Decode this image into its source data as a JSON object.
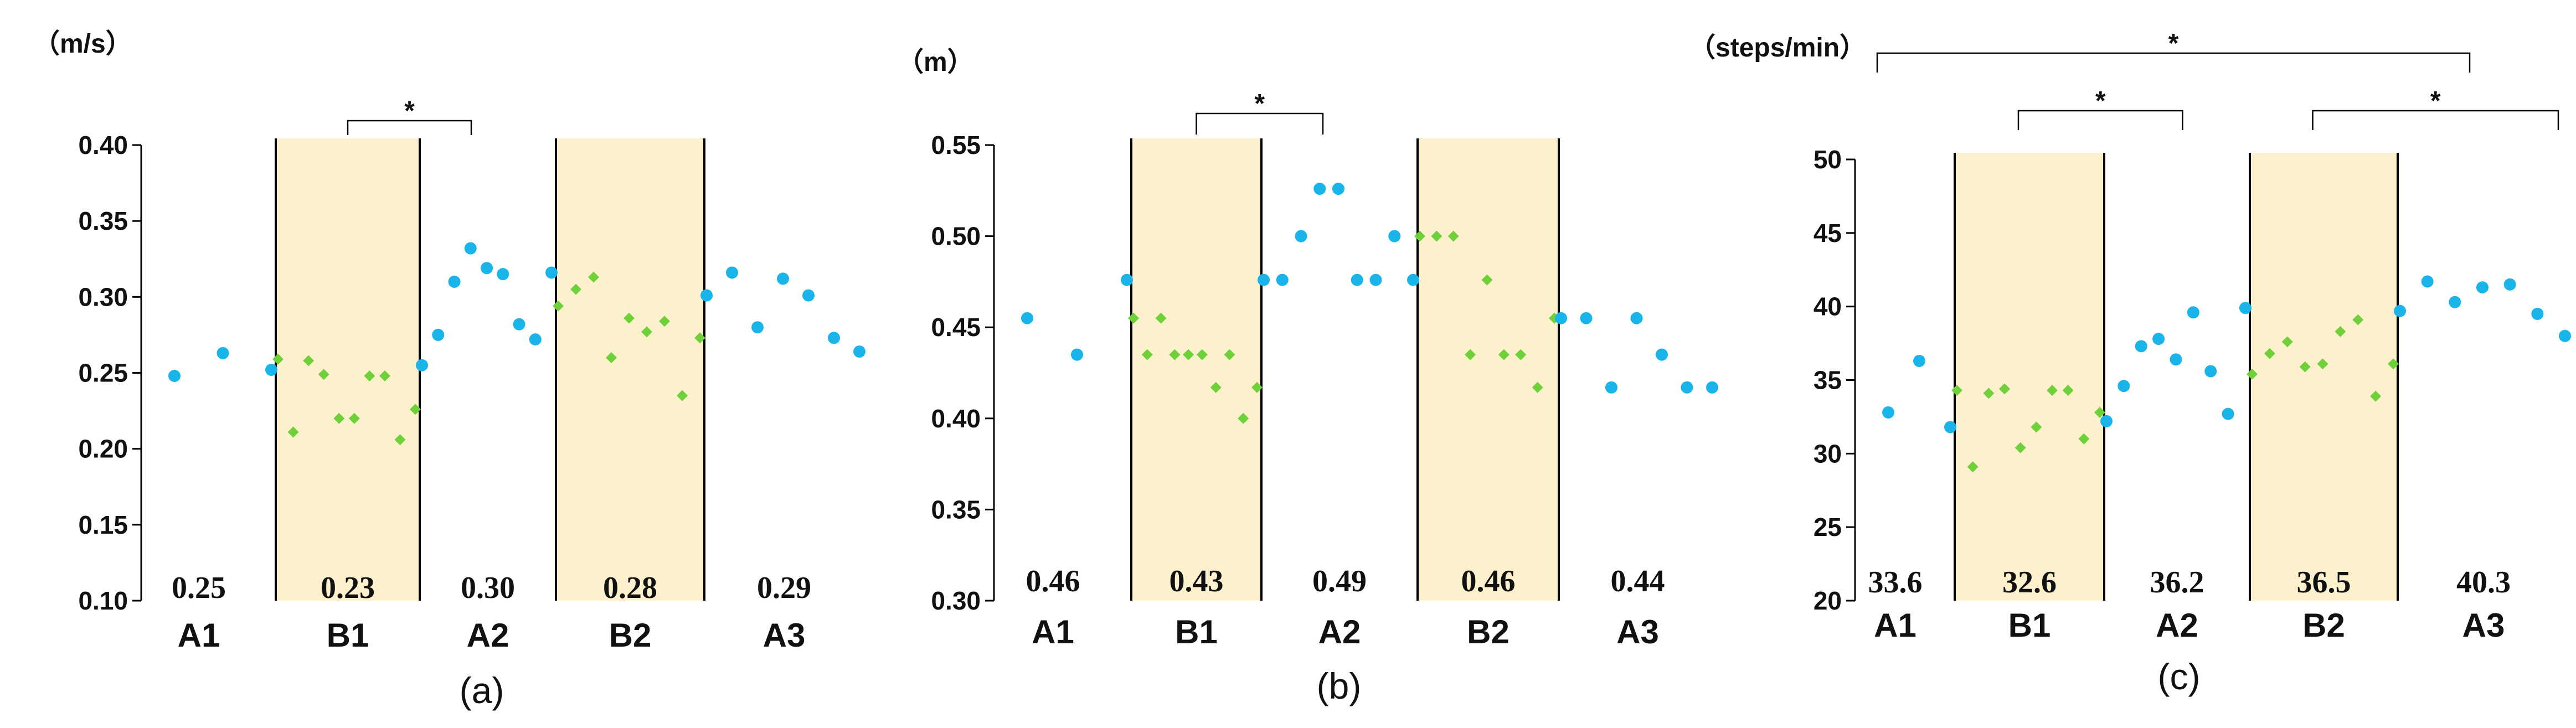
{
  "colors": {
    "phase_b_fill": "#fdf1cd",
    "phase_a_points": "#19b4ea",
    "phase_b_points": "#6fd13a",
    "axis": "#000000"
  },
  "chart_data": [
    {
      "type": "scatter",
      "subplot_label": "(a)",
      "unit": "（m/s）",
      "ylim": [
        0.1,
        0.4
      ],
      "yticks": [
        "0.10",
        "0.15",
        "0.20",
        "0.25",
        "0.30",
        "0.35",
        "0.40"
      ],
      "phases": [
        {
          "label": "A1",
          "mean": "0.25",
          "shaded": false
        },
        {
          "label": "B1",
          "mean": "0.23",
          "shaded": true
        },
        {
          "label": "A2",
          "mean": "0.30",
          "shaded": false
        },
        {
          "label": "B2",
          "mean": "0.28",
          "shaded": true
        },
        {
          "label": "A3",
          "mean": "0.29",
          "shaded": false
        }
      ],
      "significance": [
        {
          "from": "B1",
          "to": "A2",
          "label": "*"
        }
      ],
      "series": [
        {
          "phase": "A1",
          "values": [
            0.248,
            0.263,
            0.252
          ]
        },
        {
          "phase": "B1",
          "values": [
            0.259,
            0.211,
            0.258,
            0.249,
            0.22,
            0.22,
            0.248,
            0.248,
            0.206,
            0.226
          ]
        },
        {
          "phase": "A2",
          "values": [
            0.255,
            0.275,
            0.31,
            0.332,
            0.319,
            0.315,
            0.282,
            0.272,
            0.316
          ]
        },
        {
          "phase": "B2",
          "values": [
            0.294,
            0.305,
            0.313,
            0.26,
            0.286,
            0.277,
            0.284,
            0.235,
            0.273
          ]
        },
        {
          "phase": "A3",
          "values": [
            0.301,
            0.316,
            0.28,
            0.312,
            0.301,
            0.273,
            0.264
          ]
        }
      ]
    },
    {
      "type": "scatter",
      "subplot_label": "(b)",
      "unit": "（m）",
      "ylim": [
        0.3,
        0.55
      ],
      "yticks": [
        "0.30",
        "0.35",
        "0.40",
        "0.45",
        "0.50",
        "0.55"
      ],
      "phases": [
        {
          "label": "A1",
          "mean": "0.46",
          "shaded": false
        },
        {
          "label": "B1",
          "mean": "0.43",
          "shaded": true
        },
        {
          "label": "A2",
          "mean": "0.49",
          "shaded": false
        },
        {
          "label": "B2",
          "mean": "0.46",
          "shaded": true
        },
        {
          "label": "A3",
          "mean": "0.44",
          "shaded": false
        }
      ],
      "significance": [
        {
          "from": "B1",
          "to": "A2",
          "label": "*"
        }
      ],
      "series": [
        {
          "phase": "A1",
          "values": [
            0.455,
            0.435,
            0.476
          ]
        },
        {
          "phase": "B1",
          "values": [
            0.455,
            0.435,
            0.455,
            0.435,
            0.435,
            0.435,
            0.417,
            0.435,
            0.4,
            0.417
          ]
        },
        {
          "phase": "A2",
          "values": [
            0.476,
            0.476,
            0.5,
            0.526,
            0.526,
            0.476,
            0.476,
            0.5,
            0.476
          ]
        },
        {
          "phase": "B2",
          "values": [
            0.5,
            0.5,
            0.5,
            0.435,
            0.476,
            0.435,
            0.435,
            0.417,
            0.455
          ]
        },
        {
          "phase": "A3",
          "values": [
            0.455,
            0.455,
            0.417,
            0.455,
            0.435,
            0.417,
            0.417
          ]
        }
      ]
    },
    {
      "type": "scatter",
      "subplot_label": "(c)",
      "unit": "（steps/min）",
      "ylim": [
        20,
        50
      ],
      "yticks": [
        "20",
        "25",
        "30",
        "35",
        "40",
        "45",
        "50"
      ],
      "phases": [
        {
          "label": "A1",
          "mean": "33.6",
          "shaded": false
        },
        {
          "label": "B1",
          "mean": "32.6",
          "shaded": true
        },
        {
          "label": "A2",
          "mean": "36.2",
          "shaded": false
        },
        {
          "label": "B2",
          "mean": "36.5",
          "shaded": true
        },
        {
          "label": "A3",
          "mean": "40.3",
          "shaded": false
        }
      ],
      "significance": [
        {
          "from": "A1",
          "to": "A3",
          "label": "*"
        },
        {
          "from": "B1",
          "to": "A2",
          "label": "*"
        },
        {
          "from": "B2",
          "to": "A3",
          "label": "*"
        }
      ],
      "series": [
        {
          "phase": "A1",
          "values": [
            32.8,
            36.3,
            31.8
          ]
        },
        {
          "phase": "B1",
          "values": [
            34.3,
            29.1,
            34.1,
            34.4,
            30.4,
            31.8,
            34.3,
            34.3,
            31.0,
            32.8
          ]
        },
        {
          "phase": "A2",
          "values": [
            32.2,
            34.6,
            37.3,
            37.8,
            36.4,
            39.6,
            35.6,
            32.7,
            39.9
          ]
        },
        {
          "phase": "B2",
          "values": [
            35.4,
            36.8,
            37.6,
            35.9,
            36.1,
            38.3,
            39.1,
            33.9,
            36.1
          ]
        },
        {
          "phase": "A3",
          "values": [
            39.7,
            41.7,
            40.3,
            41.3,
            41.5,
            39.5,
            38.0
          ]
        }
      ]
    }
  ]
}
